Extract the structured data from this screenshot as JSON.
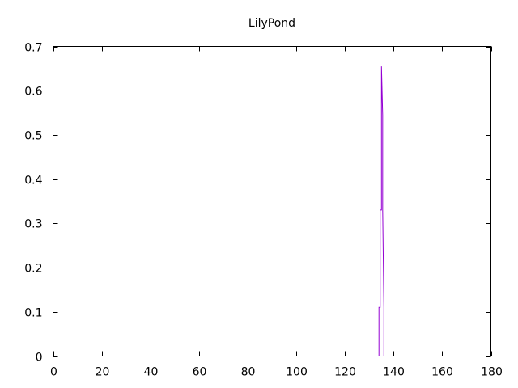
{
  "chart_data": {
    "type": "line",
    "title": "LilyPond",
    "xlabel": "",
    "ylabel": "",
    "xlim": [
      0,
      180
    ],
    "ylim": [
      0,
      0.7
    ],
    "x_ticks": [
      0,
      20,
      40,
      60,
      80,
      100,
      120,
      140,
      160,
      180
    ],
    "y_ticks": [
      0,
      0.1,
      0.2,
      0.3,
      0.4,
      0.5,
      0.6,
      0.7
    ],
    "x_tick_labels": [
      "0",
      "20",
      "40",
      "60",
      "80",
      "100",
      "120",
      "140",
      "160",
      "180"
    ],
    "y_tick_labels": [
      "0",
      "0.1",
      "0.2",
      "0.3",
      "0.4",
      "0.5",
      "0.6",
      "0.7"
    ],
    "grid": false,
    "line_color": "#9400d3",
    "series": [
      {
        "style": "steps",
        "x": [
          134,
          134,
          134.5,
          134.5,
          135,
          135,
          135.5,
          135.5,
          136,
          136
        ],
        "y": [
          0,
          0.11,
          0.11,
          0.33,
          0.33,
          0.655,
          0.545,
          0.33,
          0.11,
          0
        ]
      }
    ]
  }
}
